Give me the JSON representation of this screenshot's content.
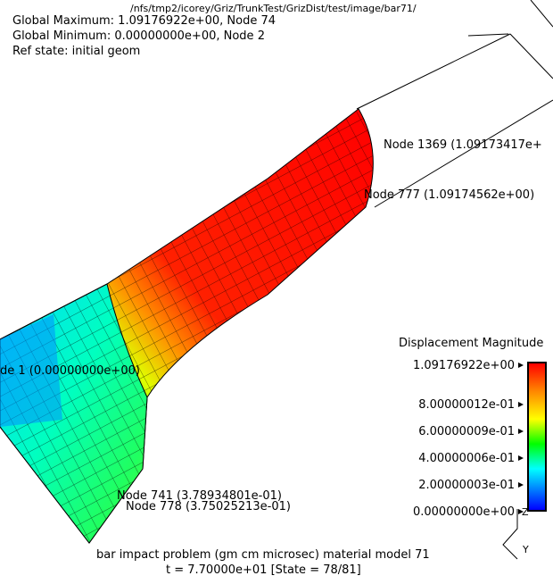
{
  "header": {
    "path": "/nfs/tmp2/icorey/Griz/TrunkTest/GrizDist/test/image/bar71/",
    "global_max": "Global Maximum: 1.09176922e+00, Node 74",
    "global_min": "Global Minimum: 0.00000000e+00, Node 2",
    "ref_state": "Ref state: initial geom"
  },
  "annotations": {
    "node_1369": "Node 1369 (1.09173417e+",
    "node_777": "Node 777 (1.09174562e+00)",
    "node_1": "de 1 (0.00000000e+00)",
    "node_741": "Node 741 (3.78934801e-01)",
    "node_778": "Node 778 (3.75025213e-01)"
  },
  "legend": {
    "title": "Displacement Magnitude",
    "labels": [
      "1.09176922e+00",
      "8.00000012e-01",
      "6.00000009e-01",
      "4.00000006e-01",
      "2.00000003e-01",
      "0.00000000e+00"
    ]
  },
  "axes": {
    "z": "Z",
    "y": "Y"
  },
  "footer": {
    "problem": "bar impact problem (gm cm microsec) material model 71",
    "state": "t = 7.70000e+01 [State = 78/81]"
  },
  "colors": {
    "max": "#ff0000",
    "min": "#0000ff"
  }
}
